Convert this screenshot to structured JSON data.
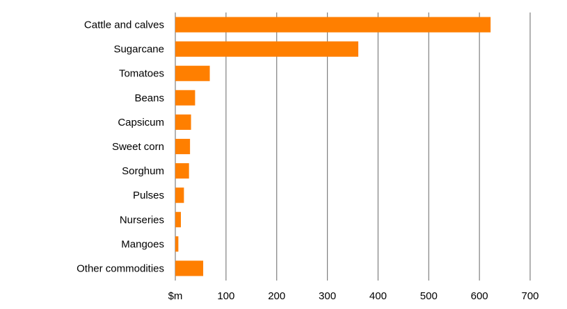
{
  "chart_data": {
    "type": "bar",
    "orientation": "horizontal",
    "categories": [
      "Cattle and calves",
      "Sugarcane",
      "Tomatoes",
      "Beans",
      "Capsicum",
      "Sweet corn",
      "Sorghum",
      "Pulses",
      "Nurseries",
      "Mangoes",
      "Other commodities"
    ],
    "values": [
      622,
      361,
      68,
      39,
      31,
      29,
      27,
      17,
      11,
      6,
      55
    ],
    "xlim": [
      0,
      700
    ],
    "xticks": [
      0,
      100,
      200,
      300,
      400,
      500,
      600,
      700
    ],
    "xtick_labels": [
      "$m",
      "100",
      "200",
      "300",
      "400",
      "500",
      "600",
      "700"
    ],
    "title": "",
    "xlabel": "",
    "ylabel": "",
    "grid": "vertical",
    "bar_color": "#ff7f00",
    "grid_color": "#7f7f7f"
  }
}
